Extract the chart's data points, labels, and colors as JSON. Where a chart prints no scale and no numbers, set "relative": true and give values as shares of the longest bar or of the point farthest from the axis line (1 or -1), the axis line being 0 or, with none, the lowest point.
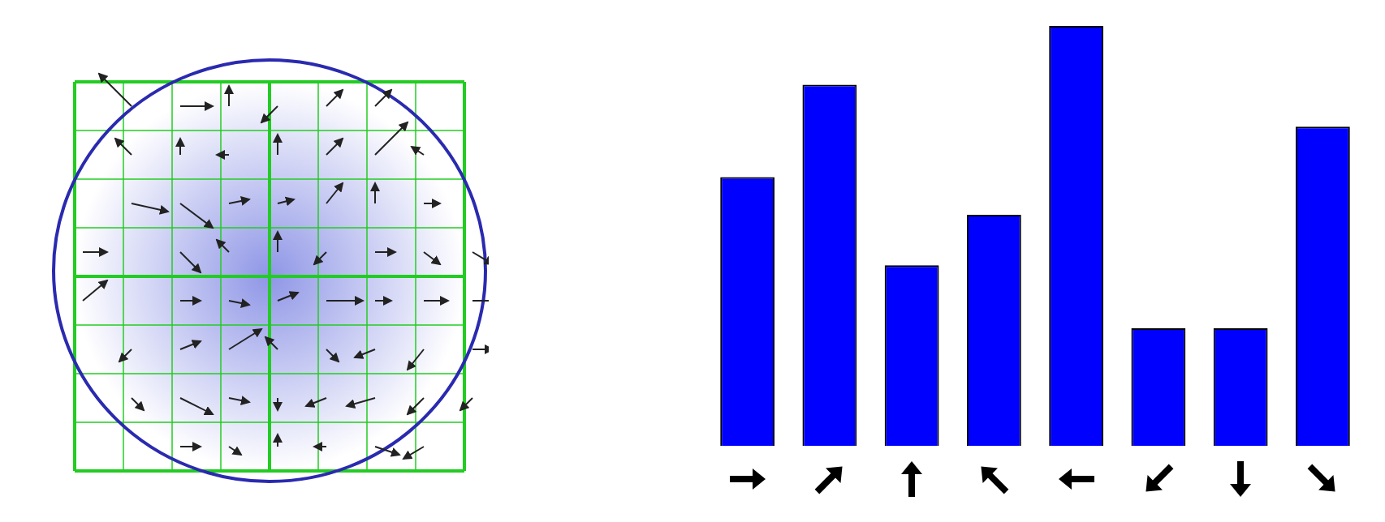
{
  "chart_data": {
    "type": "bar",
    "relative": true,
    "categories": [
      null,
      null,
      null,
      null,
      null,
      null,
      null,
      null
    ],
    "values": [
      0.64,
      0.86,
      0.43,
      0.55,
      1,
      0.28,
      0.28,
      0.76
    ],
    "color": "#0000ff"
  }
}
